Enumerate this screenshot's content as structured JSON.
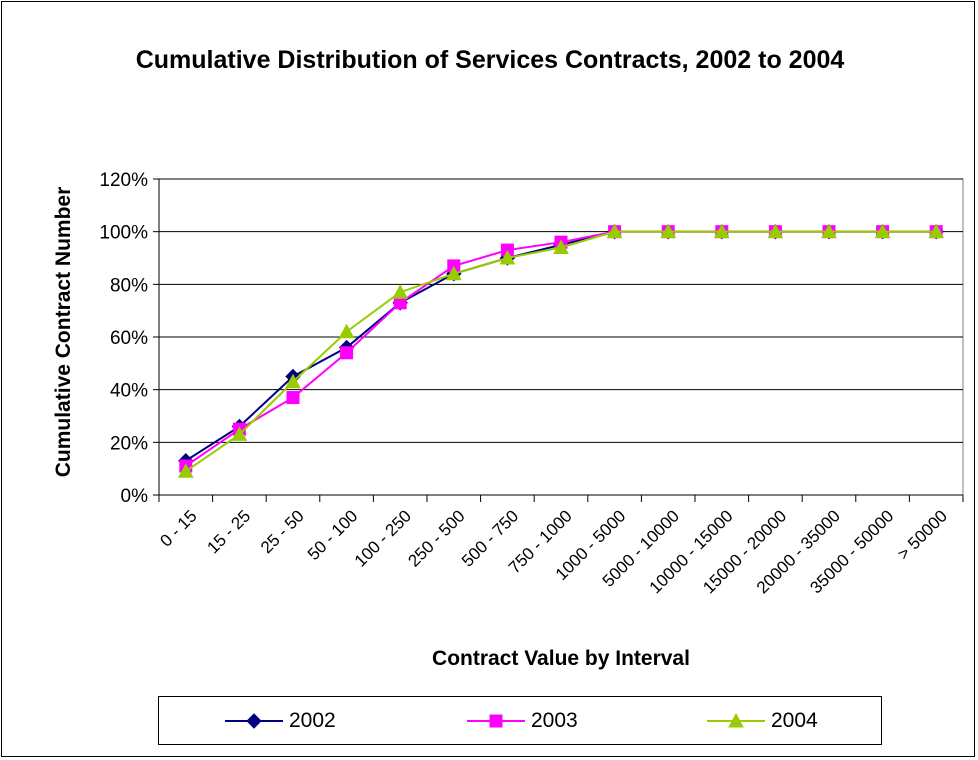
{
  "chart_data": {
    "type": "line",
    "title": "Cumulative Distribution of Services Contracts, 2002 to 2004",
    "xlabel": "Contract Value by Interval",
    "ylabel": "Cumulative Contract Number",
    "categories": [
      "0 - 15",
      "15 - 25",
      "25 - 50",
      "50 - 100",
      "100 - 250",
      "250 - 500",
      "500 - 750",
      "750 - 1000",
      "1000 - 5000",
      "5000 - 10000",
      "10000 - 15000",
      "15000 - 20000",
      "20000 - 35000",
      "35000 - 50000",
      "> 50000"
    ],
    "ylim": [
      0,
      120
    ],
    "yticks": [
      "0%",
      "20%",
      "40%",
      "60%",
      "80%",
      "100%",
      "120%"
    ],
    "grid": "horizontal major gridlines",
    "legend_position": "bottom",
    "series": [
      {
        "name": "2002",
        "color": "#000080",
        "marker": "diamond",
        "values": [
          13,
          26,
          45,
          56,
          73,
          84,
          90,
          95,
          100,
          100,
          100,
          100,
          100,
          100,
          100
        ]
      },
      {
        "name": "2003",
        "color": "#FF00FF",
        "marker": "square",
        "values": [
          11,
          25,
          37,
          54,
          73,
          87,
          93,
          96,
          100,
          100,
          100,
          100,
          100,
          100,
          100
        ]
      },
      {
        "name": "2004",
        "color": "#99CC00",
        "marker": "triangle",
        "values": [
          9,
          23,
          43,
          62,
          77,
          84,
          90,
          94,
          100,
          100,
          100,
          100,
          100,
          100,
          100
        ]
      }
    ]
  }
}
